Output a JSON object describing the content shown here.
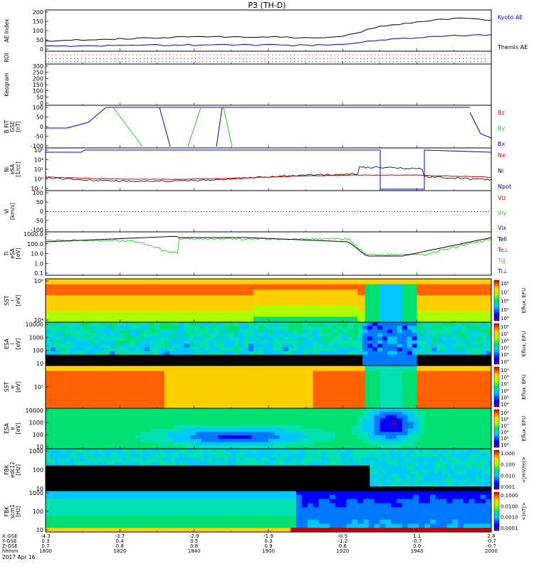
{
  "title": "P3 (TH-D)",
  "date_label": "2017 Apr 16",
  "colors": {
    "black": "#000000",
    "red": "#d40000",
    "green": "#22cc22",
    "blue": "#0000cc"
  },
  "xaxis": {
    "row_labels": [
      "X-GSE",
      "Y-GSE",
      "Z-GSE",
      "hhmm"
    ],
    "ticks": [
      {
        "x": "-4.3",
        "y": "0.3",
        "z": "0.7",
        "t": "1800"
      },
      {
        "x": "-3.7",
        "y": "0.4",
        "z": "0.8",
        "t": "1820"
      },
      {
        "x": "-2.9",
        "y": "0.5",
        "z": "0.8",
        "t": "1840"
      },
      {
        "x": "-1.9",
        "y": "0.3",
        "z": "0.9",
        "t": "1900"
      },
      {
        "x": "-0.5",
        "y": "-1.2",
        "z": "0.6",
        "t": "1920"
      },
      {
        "x": "1.1",
        "y": "-0.7",
        "z": "0.0",
        "t": "1940"
      },
      {
        "x": "2.8",
        "y": "-0.7",
        "z": "-0.7",
        "t": "2000"
      }
    ]
  },
  "chart_data": [
    {
      "type": "line",
      "ylabel": "AE Index",
      "yticks": [
        "200",
        "150",
        "100",
        "50",
        "0"
      ],
      "ylim": [
        0,
        200
      ],
      "legend": [
        "Kyoto AE",
        "Themis AE"
      ],
      "x": [
        "1800",
        "1810",
        "1820",
        "1830",
        "1840",
        "1850",
        "1900",
        "1910",
        "1920",
        "1930",
        "1940",
        "1950",
        "2000"
      ],
      "series": [
        {
          "name": "Kyoto AE",
          "values": [
            50,
            55,
            60,
            65,
            70,
            70,
            70,
            65,
            70,
            120,
            140,
            160,
            150
          ]
        },
        {
          "name": "Themis AE",
          "values": [
            25,
            25,
            28,
            30,
            30,
            30,
            30,
            28,
            35,
            55,
            65,
            75,
            80
          ]
        }
      ]
    },
    {
      "type": "line",
      "ylabel": "ROI",
      "yticks": [
        "",
        ""
      ]
    },
    {
      "type": "line",
      "ylabel": "Keogram",
      "yticks": [
        "300",
        "250",
        "200",
        "150",
        "100",
        "50",
        "0"
      ],
      "ylim": [
        0,
        300
      ]
    },
    {
      "type": "line",
      "ylabel": [
        "B FIT",
        "GSE",
        "[nT]"
      ],
      "yticks": [
        "100",
        "50",
        "0",
        "-50",
        "-100"
      ],
      "ylim": [
        -100,
        100
      ],
      "legend": [
        "Bz",
        "By",
        "Bx"
      ]
    },
    {
      "type": "line",
      "ylabel": [
        "Ni",
        "eSA",
        "[1/cc]"
      ],
      "yticks": [
        "10⁶",
        "10⁴",
        "10²",
        "10⁰",
        "10⁻²"
      ],
      "legend": [
        "Ne",
        "Ni",
        "Npot"
      ]
    },
    {
      "type": "line",
      "ylabel": [
        "Vi",
        "[km/s]"
      ],
      "yticks": [
        "100",
        "50",
        "0",
        "-50",
        "-100"
      ],
      "ylim": [
        -100,
        100
      ],
      "legend": [
        "Viz",
        "Viy",
        "Vix"
      ]
    },
    {
      "type": "line",
      "ylabel": [
        "Ti",
        "eSA",
        "[eV]"
      ],
      "yticks": [
        "1000.0",
        "100.0",
        "10.0",
        "1.0",
        "0.1"
      ],
      "legend": [
        "Tell",
        "Te⊥",
        "Ti∥",
        "Ti⊥"
      ]
    },
    {
      "type": "heatmap",
      "ylabel": [
        "SST",
        "i",
        "[eV]"
      ],
      "yticks": [
        "10⁶",
        "10⁴"
      ],
      "cticks": [
        "10⁸",
        "10⁷",
        "10⁶",
        "10⁵",
        "10⁴"
      ],
      "clabel": "Eflux, EFU"
    },
    {
      "type": "heatmap",
      "ylabel": [
        "ESA",
        "i",
        "[eV]"
      ],
      "yticks": [
        "10000",
        "1000",
        "100",
        "10"
      ],
      "cticks": [
        "10⁸",
        "10⁷",
        "10⁶",
        "10⁵",
        "10⁴",
        "10³"
      ],
      "clabel": "Eflux, EFU"
    },
    {
      "type": "heatmap",
      "ylabel": [
        "SST",
        "e",
        "[eV]"
      ],
      "yticks": [
        "10⁵"
      ],
      "cticks": [
        "10⁹",
        "10⁸",
        "10⁷",
        "10⁶",
        "10⁵",
        "10⁴"
      ],
      "clabel": "Eflux, EFU"
    },
    {
      "type": "heatmap",
      "ylabel": [
        "ESA",
        "e",
        "[eV]"
      ],
      "yticks": [
        "10000",
        "1000",
        "100",
        "10"
      ],
      "cticks": [
        "10⁹",
        "10⁸",
        "10⁷",
        "10⁶",
        "10⁵",
        "10⁴"
      ],
      "clabel": "Eflux, EFU"
    },
    {
      "type": "heatmap",
      "ylabel": [
        "FBK",
        "edc12",
        "[Hz]"
      ],
      "yticks": [
        "1000",
        "100",
        "10"
      ],
      "cticks": [
        "1.000",
        "0.100",
        "0.010",
        "0.001"
      ],
      "clabel": "<|mV/m|>"
    },
    {
      "type": "heatmap",
      "ylabel": [
        "FBK",
        "scm1",
        "[Hz]"
      ],
      "yticks": [
        "1000",
        "100",
        "10"
      ],
      "cticks": [
        "0.1000",
        "0.0100",
        "0.0010",
        "0.0001"
      ],
      "clabel": "<|nT|>"
    }
  ]
}
